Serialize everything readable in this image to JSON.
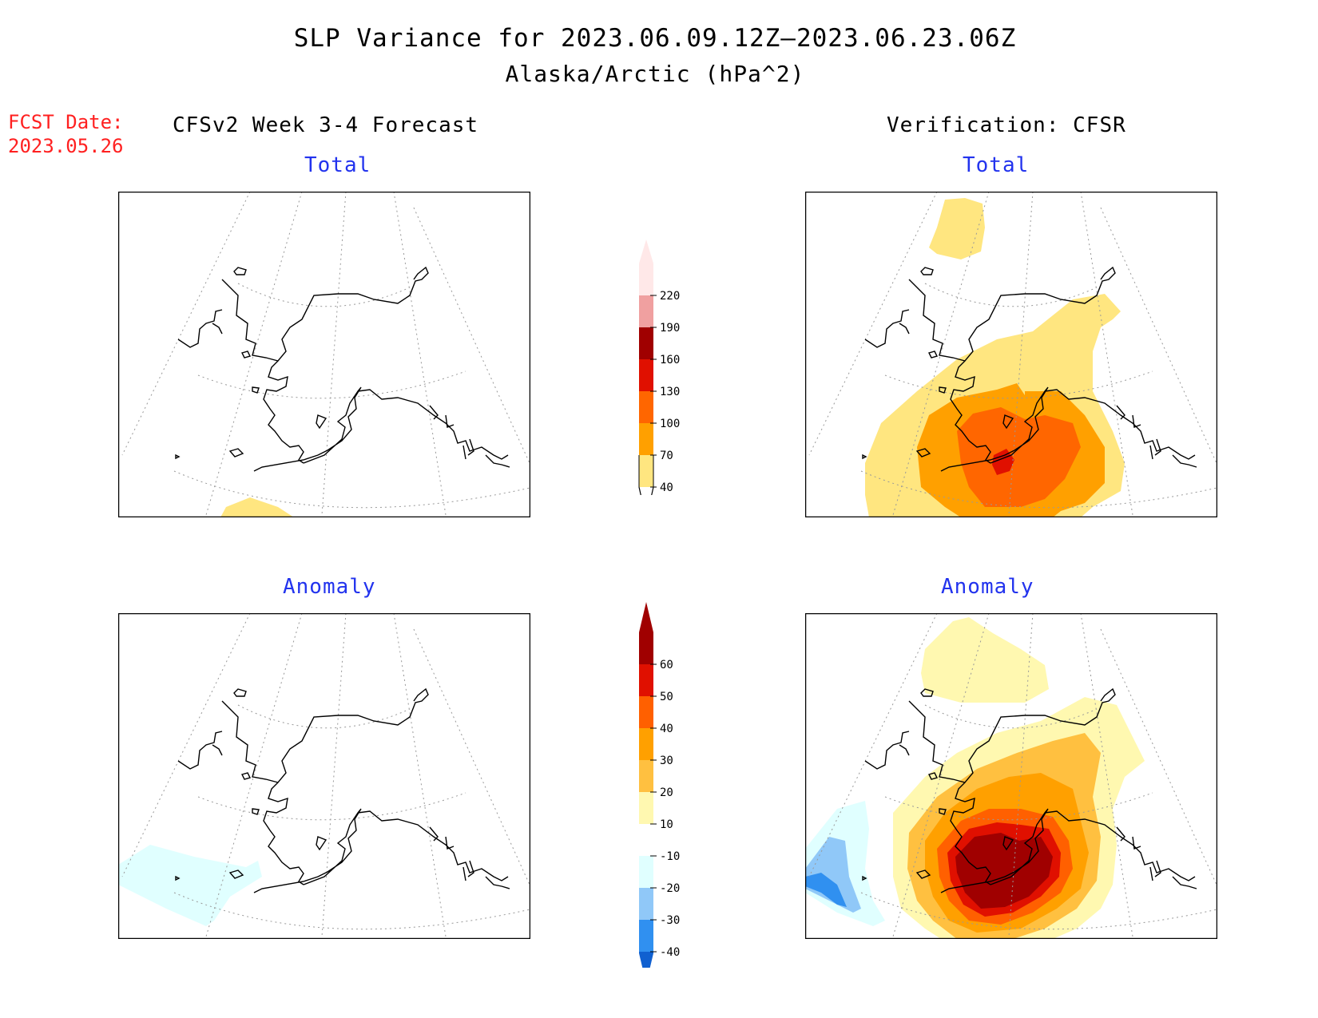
{
  "title": {
    "line1": "SLP Variance for 2023.06.09.12Z—2023.06.23.06Z",
    "line2": "Alaska/Arctic (hPa^2)"
  },
  "fcst_date": {
    "label": "FCST Date:",
    "value": "2023.05.26"
  },
  "columns": {
    "left": "CFSv2 Week 3-4 Forecast",
    "right": "Verification: CFSR"
  },
  "subtitles": {
    "total": "Total",
    "anomaly": "Anomaly"
  },
  "colors": {
    "subtitle_blue": "#2233ee",
    "fcst_red": "#ff2020",
    "total_scale": [
      "#ffe680",
      "#ffa000",
      "#ff6600",
      "#e01000",
      "#a00000",
      "#f0a0a0",
      "#ffe8e8"
    ],
    "anomaly_scale": [
      "#1060d0",
      "#3090f0",
      "#90c8f8",
      "#e0ffff",
      "#ffffff",
      "#fff8b0",
      "#ffc040",
      "#ffa000",
      "#ff6000",
      "#e01000",
      "#a00000"
    ]
  },
  "colorbars": {
    "total": {
      "labels": [
        "40",
        "70",
        "100",
        "130",
        "160",
        "190",
        "220"
      ]
    },
    "anomaly": {
      "labels": [
        "-40",
        "-30",
        "-20",
        "-10",
        "10",
        "20",
        "30",
        "40",
        "50",
        "60"
      ]
    }
  }
}
